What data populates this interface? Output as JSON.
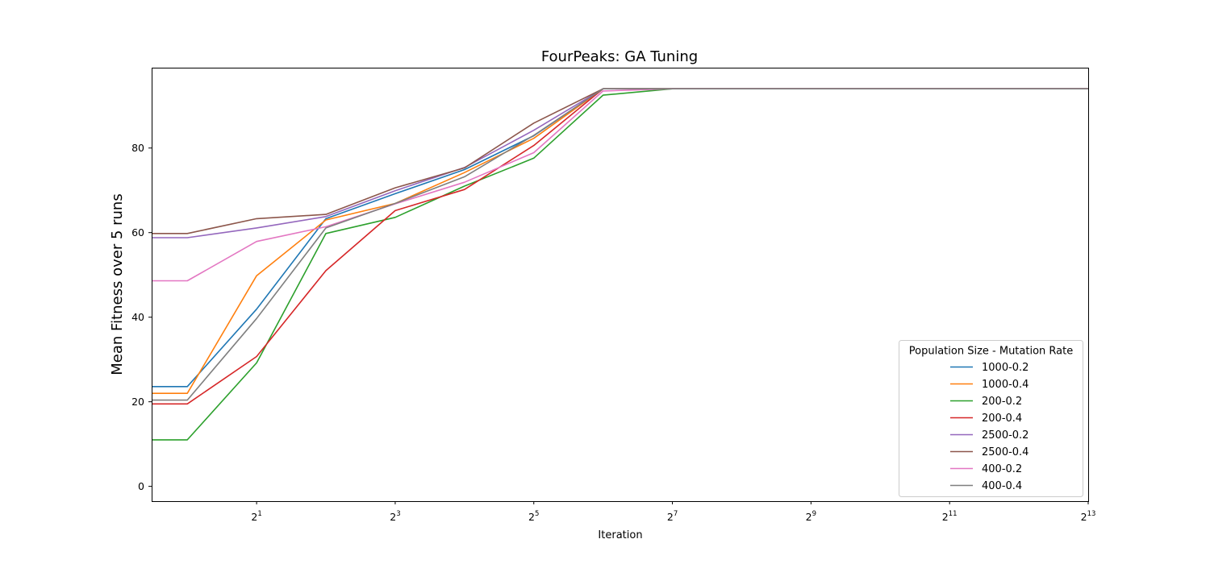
{
  "chart_data": {
    "type": "line",
    "title": "FourPeaks: GA Tuning",
    "xlabel": "Iteration",
    "ylabel": "Mean Fitness over 5 runs",
    "x_scale": "log2",
    "x": [
      0.7,
      1,
      2,
      4,
      8,
      16,
      32,
      64,
      128,
      256,
      512,
      1024,
      2048,
      4096,
      8192
    ],
    "xlim": [
      0.7,
      8192
    ],
    "ylim": [
      -3.5,
      99
    ],
    "x_ticks": [
      {
        "base": "2",
        "exp": "1",
        "value": 2
      },
      {
        "base": "2",
        "exp": "3",
        "value": 8
      },
      {
        "base": "2",
        "exp": "5",
        "value": 32
      },
      {
        "base": "2",
        "exp": "7",
        "value": 128
      },
      {
        "base": "2",
        "exp": "9",
        "value": 512
      },
      {
        "base": "2",
        "exp": "11",
        "value": 2048
      },
      {
        "base": "2",
        "exp": "13",
        "value": 8192
      }
    ],
    "y_ticks": [
      {
        "label": "0",
        "value": 0
      },
      {
        "label": "20",
        "value": 20
      },
      {
        "label": "40",
        "value": 40
      },
      {
        "label": "60",
        "value": 60
      },
      {
        "label": "80",
        "value": 80
      }
    ],
    "grid": false,
    "legend": {
      "title": "Population Size - Mutation Rate",
      "placement": "lower-right"
    },
    "series": [
      {
        "name": "1000-0.2",
        "color": "#1f77b4",
        "values": [
          23.6,
          23.6,
          41.9,
          63.3,
          69.2,
          74.9,
          82.9,
          94,
          94,
          94,
          94,
          94,
          94,
          94,
          94
        ]
      },
      {
        "name": "1000-0.4",
        "color": "#ff7f0e",
        "values": [
          22,
          22,
          49.8,
          63,
          66.9,
          74.2,
          82.3,
          94,
          94,
          94,
          94,
          94,
          94,
          94,
          94
        ]
      },
      {
        "name": "200-0.2",
        "color": "#2ca02c",
        "values": [
          11,
          11,
          29.2,
          59.8,
          63.6,
          71,
          77.6,
          92.5,
          94,
          94,
          94,
          94,
          94,
          94,
          94
        ]
      },
      {
        "name": "200-0.4",
        "color": "#d62728",
        "values": [
          19.5,
          19.5,
          30.7,
          51,
          65.2,
          70.2,
          80.6,
          94,
          94,
          94,
          94,
          94,
          94,
          94,
          94
        ]
      },
      {
        "name": "2500-0.2",
        "color": "#9467bd",
        "values": [
          58.8,
          58.8,
          61.1,
          63.8,
          69.9,
          75.4,
          84.2,
          94,
          94,
          94,
          94,
          94,
          94,
          94,
          94
        ]
      },
      {
        "name": "2500-0.4",
        "color": "#8c564b",
        "values": [
          59.8,
          59.8,
          63.3,
          64.3,
          70.6,
          75.3,
          85.9,
          94,
          94,
          94,
          94,
          94,
          94,
          94,
          94
        ]
      },
      {
        "name": "400-0.2",
        "color": "#e377c2",
        "values": [
          48.6,
          48.6,
          57.9,
          61.4,
          66.8,
          71.9,
          78.9,
          93.5,
          94,
          94,
          94,
          94,
          94,
          94,
          94
        ]
      },
      {
        "name": "400-0.4",
        "color": "#7f7f7f",
        "values": [
          20.4,
          20.4,
          39.7,
          61.1,
          66.9,
          73.2,
          83,
          94,
          94,
          94,
          94,
          94,
          94,
          94,
          94
        ]
      }
    ]
  }
}
